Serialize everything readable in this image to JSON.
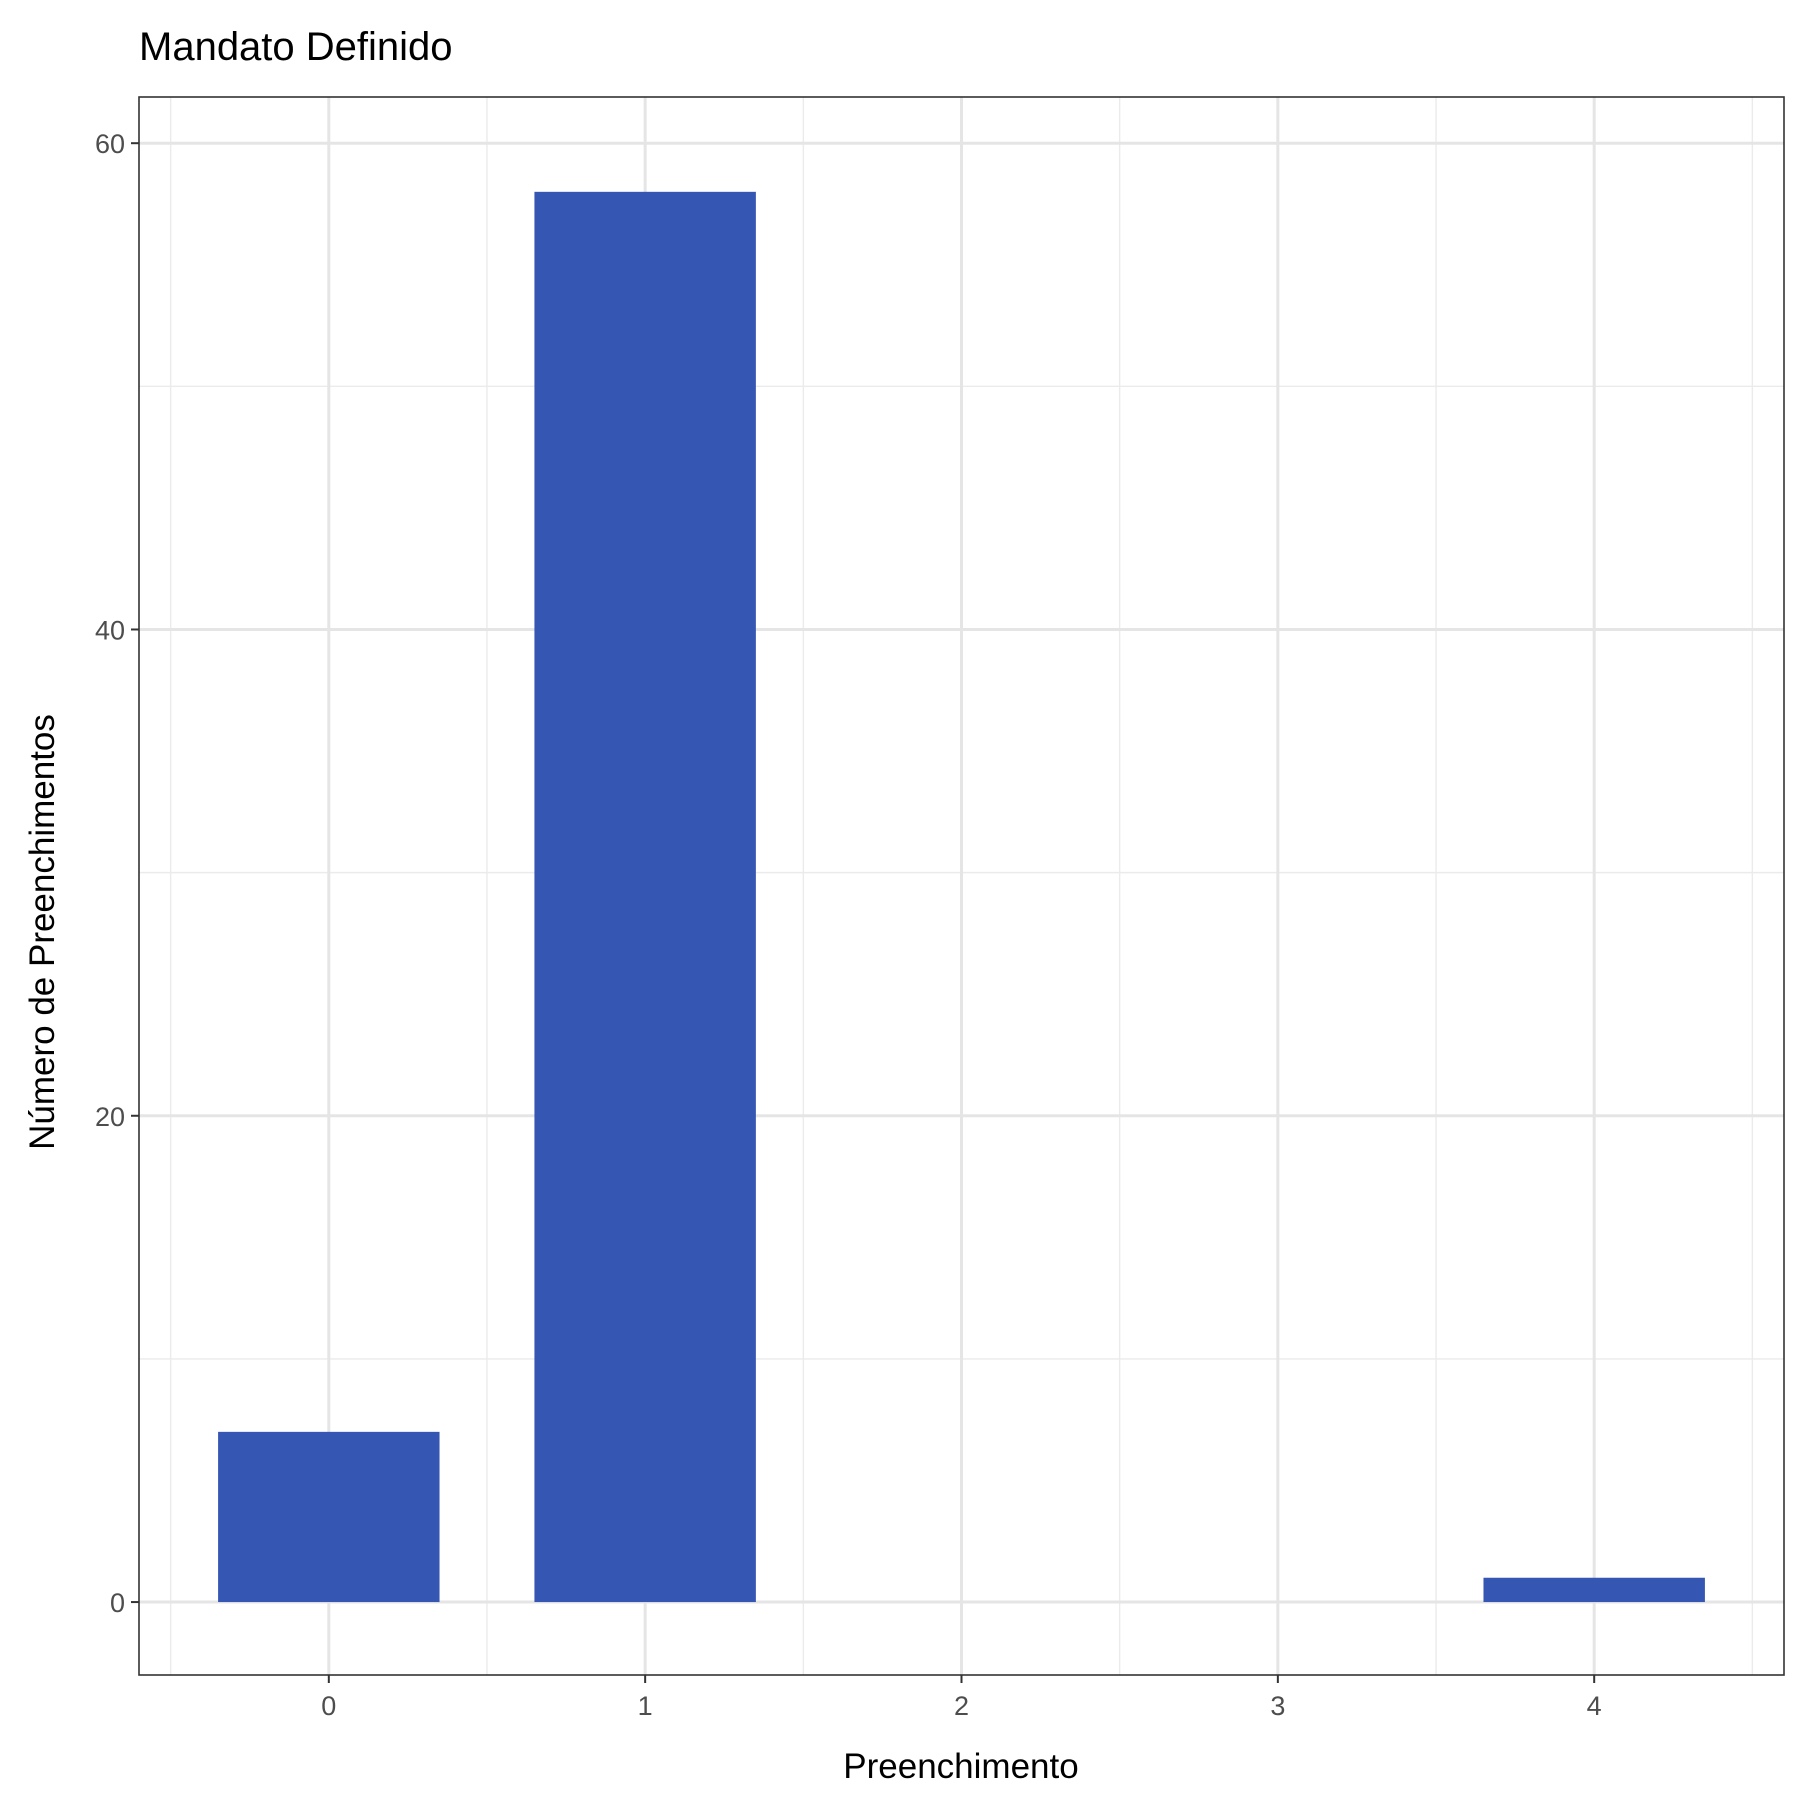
{
  "chart_data": {
    "type": "bar",
    "title": "Mandato Definido",
    "xlabel": "Preenchimento",
    "ylabel": "Número de Preenchimentos",
    "categories": [
      "0",
      "1",
      "2",
      "3",
      "4"
    ],
    "x": [
      0,
      1,
      2,
      3,
      4
    ],
    "values": [
      7,
      58,
      0,
      0,
      1
    ],
    "xlim": [
      -0.5,
      4.5
    ],
    "ylim": [
      0,
      60
    ],
    "yticks": [
      0,
      20,
      40,
      60
    ],
    "grid": true,
    "bar_color": "#3556B3",
    "legend": "none"
  }
}
